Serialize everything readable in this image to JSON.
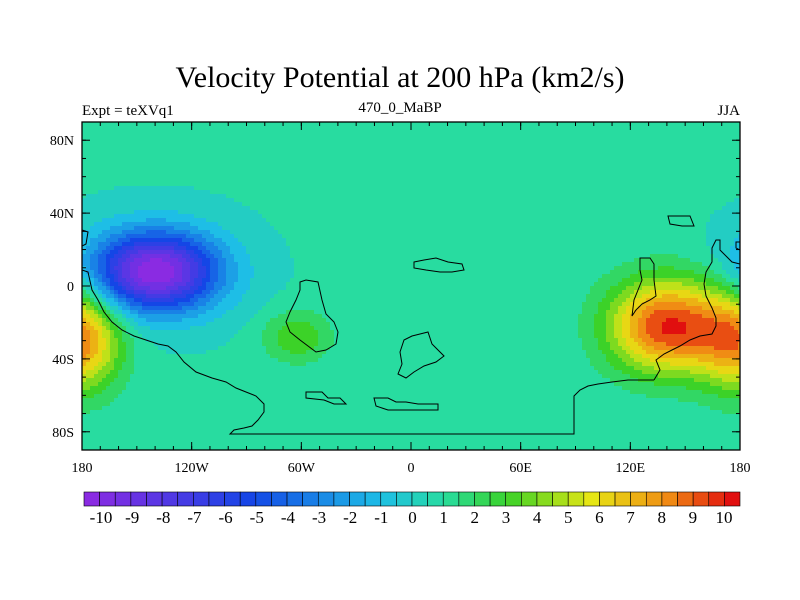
{
  "chart_data": {
    "type": "heatmap",
    "title": "Velocity Potential at 200 hPa (km2/s)",
    "left_label": "Expt = teXVq1",
    "center_label": "470_0_MaBP",
    "right_label": "JJA",
    "x_ticks": [
      "180",
      "120W",
      "60W",
      "0",
      "60E",
      "120E",
      "180"
    ],
    "y_ticks": [
      "80N",
      "40N",
      "0",
      "40S",
      "80S"
    ],
    "x_range": [
      -180,
      180
    ],
    "y_range": [
      -90,
      90
    ],
    "colorbar_labels": [
      "-10",
      "-9",
      "-8",
      "-7",
      "-6",
      "-5",
      "-4",
      "-3",
      "-2",
      "-1",
      "0",
      "1",
      "2",
      "3",
      "4",
      "5",
      "6",
      "7",
      "8",
      "9",
      "10"
    ],
    "colorbar_range": [
      -10.5,
      10.5
    ],
    "field_extrema": [
      {
        "lon": -140,
        "lat": 8,
        "value": -10.5,
        "label": "minimum"
      },
      {
        "lon": 140,
        "lat": -22,
        "value": 9.5,
        "label": "maximum"
      },
      {
        "lon": -62,
        "lat": -28,
        "value": 3.5,
        "label": "secondary maximum"
      },
      {
        "lon": -180,
        "lat": -30,
        "value": 7,
        "label": "dateline maximum"
      }
    ]
  }
}
